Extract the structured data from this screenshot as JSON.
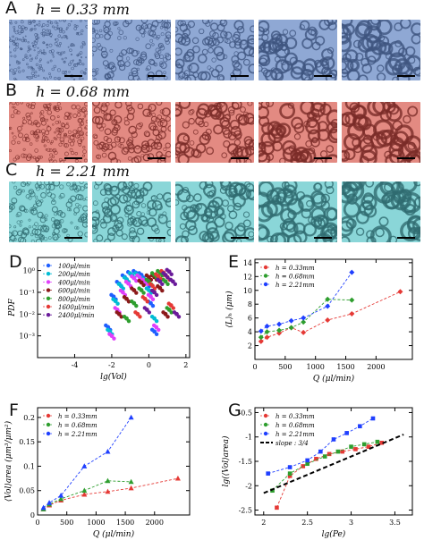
{
  "rows": [
    {
      "letter": "A",
      "title": "h = 0.33 mm",
      "color": "#8fa8d4",
      "dark": "#3f557f"
    },
    {
      "letter": "B",
      "title": "h = 0.68 mm",
      "color": "#e38a82",
      "dark": "#7a2c28"
    },
    {
      "letter": "C",
      "title": "h = 2.21 mm",
      "color": "#8ad6d8",
      "dark": "#2f6b70"
    }
  ],
  "chart_data": [
    {
      "panel": "D",
      "type": "scatter",
      "xlabel": "lg(Vol)",
      "ylabel": "PDF",
      "xlim": [
        -6,
        2.2
      ],
      "ylim_log10": [
        -4,
        0.6
      ],
      "y_log": true,
      "xticks": [
        -4,
        -2,
        0,
        2
      ],
      "yticks_labels": [
        "10⁰",
        "10⁻¹",
        "10⁻²",
        "10⁻³"
      ],
      "yticks_exp": [
        0,
        -1,
        -2,
        -3
      ],
      "legend_position": "top-left",
      "series": [
        {
          "name": "100μl/min",
          "color": "#1f5fff",
          "marker": "circle",
          "x": [
            -2.2,
            -1.9,
            -1.6,
            -1.3,
            -1.0,
            -0.7,
            -0.4,
            -0.1,
            0.1,
            0.3
          ],
          "y_log10": [
            -2.6,
            -1.2,
            -0.6,
            -0.3,
            -0.15,
            -0.1,
            -0.2,
            -0.6,
            -1.5,
            -2.8
          ]
        },
        {
          "name": "200μl/min",
          "color": "#00bcd4",
          "marker": "circle",
          "x": [
            -2.1,
            -1.8,
            -1.5,
            -1.2,
            -0.9,
            -0.6,
            -0.3,
            0.0,
            0.3
          ],
          "y_log10": [
            -2.8,
            -1.4,
            -0.7,
            -0.4,
            -0.2,
            -0.2,
            -0.4,
            -0.9,
            -2.2
          ]
        },
        {
          "name": "400μl/min",
          "color": "#e040fb",
          "marker": "circle",
          "x": [
            -2.0,
            -1.7,
            -1.4,
            -1.1,
            -0.8,
            -0.5,
            -0.2,
            0.1,
            0.4
          ],
          "y_log10": [
            -3.0,
            -1.8,
            -1.0,
            -0.6,
            -0.35,
            -0.3,
            -0.5,
            -1.2,
            -2.6
          ]
        },
        {
          "name": "600μl/min",
          "color": "#8b1a1a",
          "marker": "circle",
          "x": [
            -1.6,
            -1.2,
            -0.8,
            -0.4,
            0.0,
            0.3,
            0.6,
            0.9
          ],
          "y_log10": [
            -2.0,
            -1.3,
            -0.9,
            -0.55,
            -0.3,
            -0.3,
            -0.8,
            -2.0
          ]
        },
        {
          "name": "800μl/min",
          "color": "#2e9e2e",
          "marker": "circle",
          "x": [
            -1.2,
            -0.8,
            -0.4,
            0.0,
            0.3,
            0.6,
            0.9,
            1.1
          ],
          "y_log10": [
            -2.2,
            -1.5,
            -0.9,
            -0.5,
            -0.2,
            -0.1,
            -0.5,
            -1.8
          ]
        },
        {
          "name": "1600μl/min",
          "color": "#e53935",
          "marker": "circle",
          "x": [
            -0.6,
            -0.2,
            0.2,
            0.5,
            0.8,
            1.0,
            1.2
          ],
          "y_log10": [
            -2.0,
            -1.3,
            -0.7,
            -0.25,
            -0.1,
            -0.3,
            -1.6
          ]
        },
        {
          "name": "2400μl/min",
          "color": "#6a1b9a",
          "marker": "circle",
          "x": [
            -0.1,
            0.3,
            0.6,
            0.9,
            1.1,
            1.3,
            1.5
          ],
          "y_log10": [
            -1.8,
            -1.0,
            -0.5,
            -0.2,
            -0.05,
            -0.5,
            -2.0
          ]
        }
      ]
    },
    {
      "panel": "E",
      "type": "line",
      "xlabel": "Q (μl/min)",
      "ylabel": "⟨L⟩ₕ (μm)",
      "xlim": [
        0,
        2600
      ],
      "ylim": [
        0,
        14.5
      ],
      "xticks": [
        0,
        500,
        1000,
        1500,
        2000
      ],
      "yticks": [
        2,
        4,
        6,
        8,
        10,
        12,
        14
      ],
      "legend_position": "top-left",
      "series": [
        {
          "name": "h = 0.33mm",
          "color": "#e53935",
          "marker": "diamond",
          "x": [
            100,
            200,
            400,
            600,
            800,
            1200,
            1600,
            2400
          ],
          "y": [
            2.6,
            3.2,
            3.8,
            4.6,
            3.9,
            5.7,
            6.6,
            9.8
          ]
        },
        {
          "name": "h = 0.68mm",
          "color": "#2e9e2e",
          "marker": "diamond",
          "x": [
            100,
            200,
            400,
            600,
            800,
            1200,
            1600
          ],
          "y": [
            3.2,
            4.0,
            4.2,
            4.6,
            5.4,
            8.7,
            8.6
          ]
        },
        {
          "name": "h = 2.21mm",
          "color": "#1f3fff",
          "marker": "diamond",
          "x": [
            100,
            200,
            400,
            600,
            800,
            1200,
            1600
          ],
          "y": [
            4.1,
            4.8,
            5.1,
            5.6,
            6.0,
            7.7,
            12.6
          ]
        }
      ]
    },
    {
      "panel": "F",
      "type": "line",
      "xlabel": "Q (μl/min)",
      "ylabel": "⟨Vol⟩area (μm³/μm²)",
      "xlim": [
        0,
        2600
      ],
      "ylim": [
        0,
        0.22
      ],
      "xticks": [
        0,
        500,
        1000,
        1500,
        2000
      ],
      "yticks": [
        0,
        0.05,
        0.1,
        0.15,
        0.2
      ],
      "legend_position": "top-left",
      "series": [
        {
          "name": "h = 0.33mm",
          "color": "#e53935",
          "marker": "triangle",
          "x": [
            100,
            200,
            400,
            800,
            1200,
            1600,
            2400
          ],
          "y": [
            0.012,
            0.02,
            0.03,
            0.042,
            0.048,
            0.055,
            0.075
          ]
        },
        {
          "name": "h = 0.68mm",
          "color": "#2e9e2e",
          "marker": "triangle",
          "x": [
            100,
            200,
            400,
            800,
            1200,
            1600
          ],
          "y": [
            0.012,
            0.022,
            0.033,
            0.05,
            0.07,
            0.068
          ]
        },
        {
          "name": "h = 2.21mm",
          "color": "#1f3fff",
          "marker": "triangle",
          "x": [
            100,
            200,
            400,
            800,
            1200,
            1600
          ],
          "y": [
            0.015,
            0.025,
            0.04,
            0.1,
            0.13,
            0.2
          ]
        }
      ]
    },
    {
      "panel": "G",
      "type": "line",
      "xlabel": "lg(Pe)",
      "ylabel": "lg(⟨Vol⟩area)",
      "xlim": [
        1.9,
        3.7
      ],
      "ylim": [
        -2.6,
        -0.4
      ],
      "xticks": [
        2,
        2.5,
        3,
        3.5
      ],
      "yticks": [
        -2.5,
        -2,
        -1.5,
        -1,
        -0.5
      ],
      "legend_position": "top-left",
      "series": [
        {
          "name": "h = 0.33mm",
          "color": "#e53935",
          "marker": "square",
          "x": [
            2.15,
            2.3,
            2.45,
            2.6,
            2.75,
            2.9,
            3.05,
            3.2,
            3.35
          ],
          "y": [
            -2.45,
            -1.8,
            -1.6,
            -1.45,
            -1.35,
            -1.3,
            -1.25,
            -1.2,
            -1.12
          ]
        },
        {
          "name": "h = 0.68mm",
          "color": "#2e9e2e",
          "marker": "square",
          "x": [
            2.1,
            2.3,
            2.5,
            2.7,
            2.85,
            3.0,
            3.15,
            3.3
          ],
          "y": [
            -2.1,
            -1.75,
            -1.55,
            -1.4,
            -1.3,
            -1.2,
            -1.15,
            -1.1
          ]
        },
        {
          "name": "h = 2.21mm",
          "color": "#1f3fff",
          "marker": "square",
          "x": [
            2.05,
            2.3,
            2.5,
            2.65,
            2.8,
            2.95,
            3.1,
            3.25
          ],
          "y": [
            -1.75,
            -1.62,
            -1.48,
            -1.3,
            -1.05,
            -0.92,
            -0.78,
            -0.62
          ]
        },
        {
          "name": "slope : 3/4",
          "color": "#000000",
          "style": "dashed",
          "x": [
            2.0,
            3.6
          ],
          "y": [
            -2.15,
            -0.95
          ]
        }
      ]
    }
  ]
}
